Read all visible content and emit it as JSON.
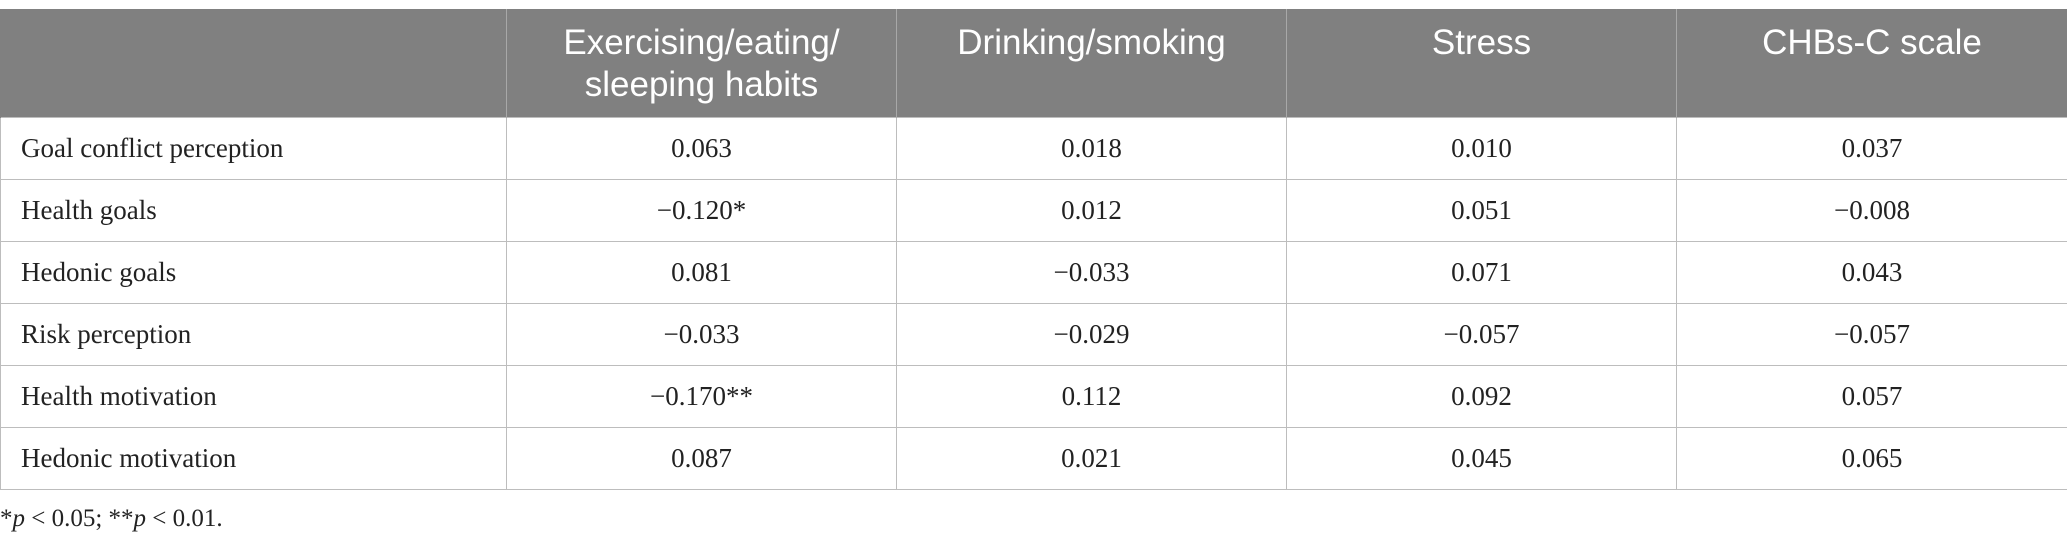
{
  "table": {
    "headers": [
      "",
      "Exercising/eating/\nsleeping habits",
      "Drinking/smoking",
      "Stress",
      "CHBs-C scale"
    ],
    "rows": [
      {
        "label": "Goal conflict perception",
        "values": [
          "0.063",
          "0.018",
          "0.010",
          "0.037"
        ]
      },
      {
        "label": "Health goals",
        "values": [
          "−0.120*",
          "0.012",
          "0.051",
          "−0.008"
        ]
      },
      {
        "label": "Hedonic goals",
        "values": [
          "0.081",
          "−0.033",
          "0.071",
          "0.043"
        ]
      },
      {
        "label": "Risk perception",
        "values": [
          "−0.033",
          "−0.029",
          "−0.057",
          "−0.057"
        ]
      },
      {
        "label": "Health motivation",
        "values": [
          "−0.170**",
          "0.112",
          "0.092",
          "0.057"
        ]
      },
      {
        "label": "Hedonic motivation",
        "values": [
          "0.087",
          "0.021",
          "0.045",
          "0.065"
        ]
      }
    ]
  },
  "footnote": {
    "star1": "*",
    "p1": "p",
    "cond1": " < 0.05; ",
    "star2": "**",
    "p2": "p",
    "cond2": " < 0.01."
  }
}
